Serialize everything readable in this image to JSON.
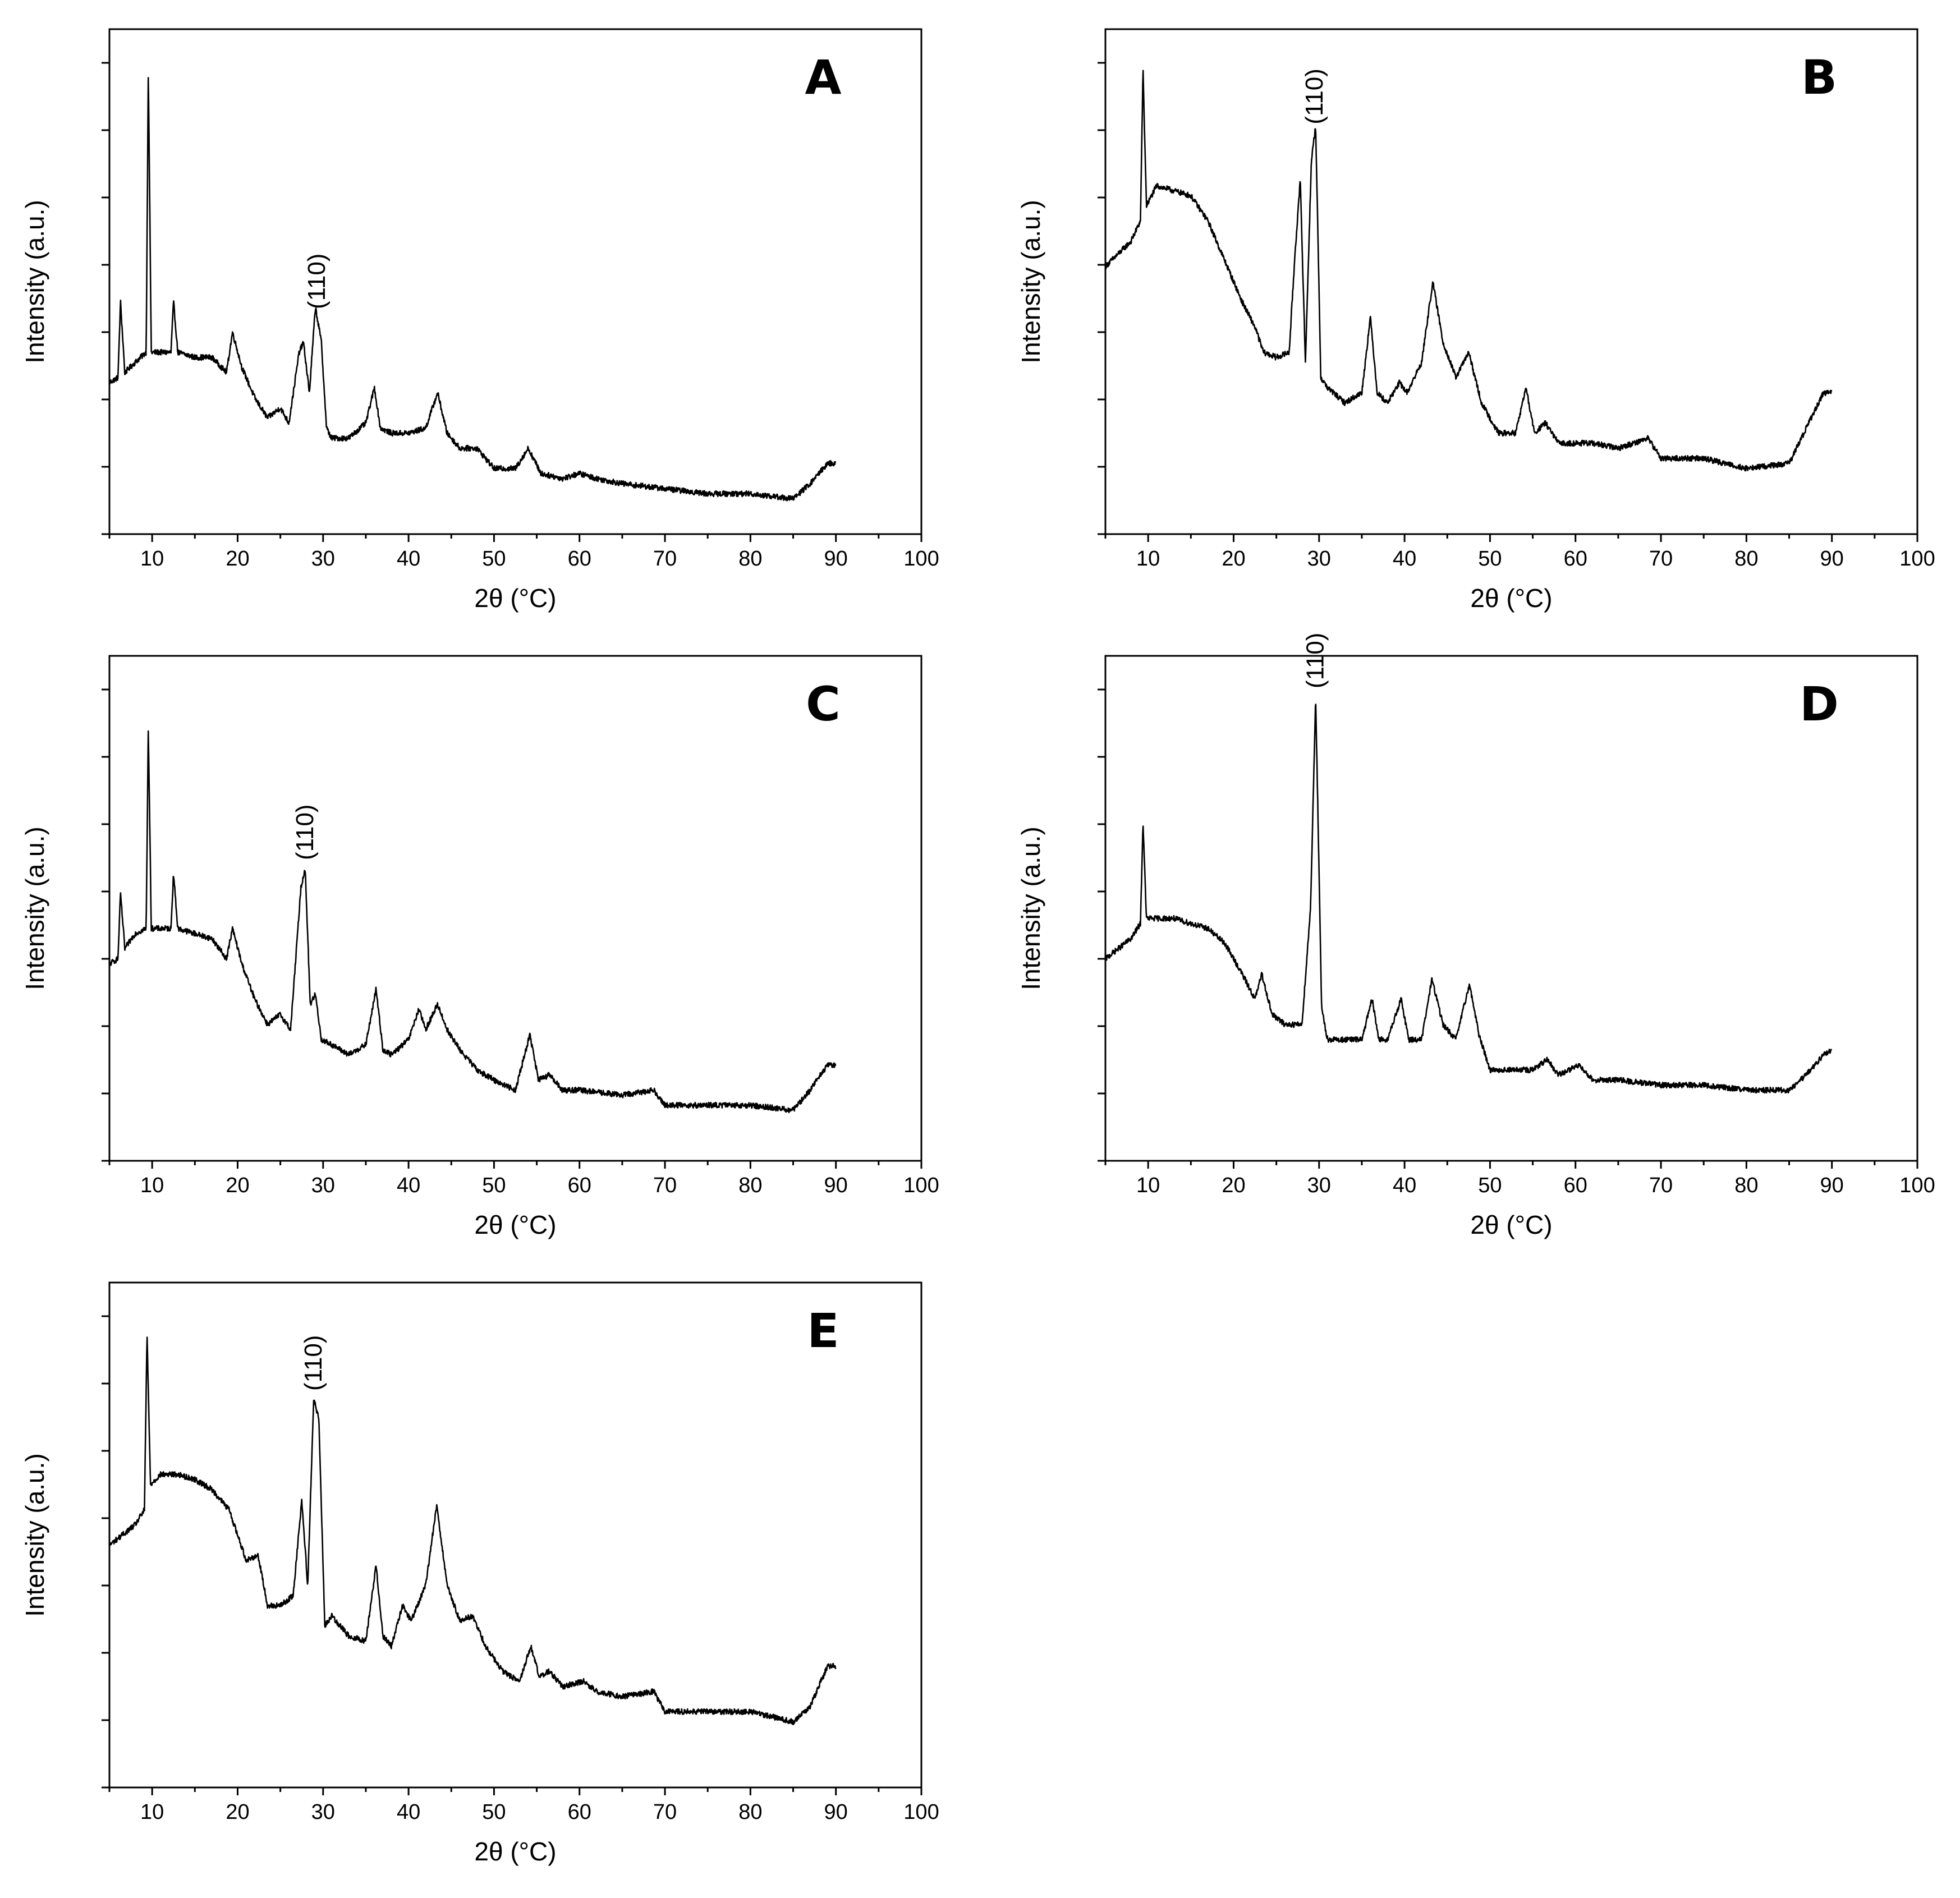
{
  "figure": {
    "description_free": true
  },
  "chart_data": [
    {
      "type": "line",
      "panel": "A",
      "xlabel": "2θ (°C)",
      "ylabel": "Intensity (a.u.)",
      "xlim": [
        5,
        100
      ],
      "xticks": [
        10,
        20,
        30,
        40,
        50,
        60,
        70,
        80,
        90,
        100
      ],
      "ylim": [
        0,
        100
      ],
      "yticks_labeled": false,
      "annotation": {
        "text": "(110)",
        "x": 29.3
      },
      "series": [
        {
          "name": "A",
          "x": [
            5,
            6,
            6.3,
            6.8,
            8,
            9.3,
            9.55,
            9.9,
            11,
            12.2,
            12.5,
            13,
            15,
            17,
            18.7,
            19.4,
            20.5,
            22,
            23.5,
            25,
            26,
            27.2,
            27.7,
            28.4,
            29.1,
            29.8,
            30.4,
            31,
            33,
            35,
            36,
            36.7,
            38,
            40,
            42,
            43.4,
            44.5,
            46,
            48,
            50,
            52.5,
            54,
            55.5,
            58,
            60,
            62,
            65,
            70,
            75,
            80,
            85,
            87,
            89,
            90
          ],
          "y": [
            30,
            31,
            46,
            32,
            34,
            36,
            92,
            36,
            36,
            36,
            46,
            36,
            35,
            35,
            32,
            40,
            33,
            27,
            23,
            25,
            22,
            36,
            38,
            28,
            45,
            38,
            21,
            19,
            19,
            22,
            29,
            21,
            20,
            20,
            21,
            28,
            20,
            17,
            17,
            13,
            13,
            17,
            12,
            11,
            12,
            11,
            10,
            9,
            8,
            8,
            7,
            10,
            14,
            14
          ]
        }
      ]
    },
    {
      "type": "line",
      "panel": "B",
      "xlabel": "2θ (°C)",
      "ylabel": "Intensity (a.u.)",
      "xlim": [
        5,
        100
      ],
      "xticks": [
        10,
        20,
        30,
        40,
        50,
        60,
        70,
        80,
        90,
        100
      ],
      "ylim": [
        0,
        100
      ],
      "yticks_labeled": false,
      "annotation": {
        "text": "(110)",
        "x": 29.5
      },
      "series": [
        {
          "name": "B",
          "x": [
            5,
            8,
            9.1,
            9.4,
            9.8,
            11,
            13,
            15,
            17,
            19,
            21,
            22.5,
            23.5,
            25,
            26.5,
            27.2,
            27.8,
            28.4,
            29.1,
            29.6,
            30.2,
            31,
            33,
            35,
            36,
            36.8,
            38,
            39.4,
            40.3,
            42,
            43.3,
            44.5,
            46,
            47.5,
            49,
            51,
            53,
            54.2,
            55.2,
            56.5,
            58,
            60,
            62,
            65,
            68.5,
            70,
            75,
            80,
            85,
            87,
            89,
            90
          ],
          "y": [
            53,
            58,
            62,
            92,
            65,
            69,
            68,
            67,
            62,
            54,
            46,
            41,
            36,
            35,
            36,
            56,
            70,
            34,
            74,
            81,
            31,
            29,
            26,
            28,
            43,
            28,
            26,
            30,
            28,
            34,
            50,
            38,
            31,
            36,
            26,
            20,
            20,
            29,
            20,
            22,
            18,
            18,
            18,
            17,
            19,
            15,
            15,
            13,
            14,
            21,
            28,
            28
          ]
        }
      ]
    },
    {
      "type": "line",
      "panel": "C",
      "xlabel": "2θ (°C)",
      "ylabel": "Intensity (a.u.)",
      "xlim": [
        5,
        100
      ],
      "xticks": [
        10,
        20,
        30,
        40,
        50,
        60,
        70,
        80,
        90,
        100
      ],
      "ylim": [
        0,
        100
      ],
      "yticks_labeled": false,
      "annotation": {
        "text": "(110)",
        "x": 27.9
      },
      "series": [
        {
          "name": "C",
          "x": [
            5,
            6,
            6.3,
            6.8,
            8,
            9.3,
            9.55,
            9.9,
            11,
            12.2,
            12.5,
            13,
            15,
            17,
            18.7,
            19.4,
            20.5,
            22,
            23.5,
            25,
            26.2,
            27.4,
            27.9,
            28.5,
            29.1,
            29.8,
            31,
            33,
            35,
            36.2,
            37,
            38,
            40,
            41.2,
            42,
            43.4,
            44.5,
            46,
            48,
            50,
            52.5,
            54.2,
            55.2,
            56.5,
            58,
            60,
            65,
            68.7,
            70,
            75,
            80,
            85,
            87,
            89,
            90
          ],
          "y": [
            39,
            40,
            53,
            42,
            45,
            46,
            86,
            46,
            46,
            46,
            57,
            46,
            45,
            44,
            40,
            46,
            39,
            32,
            27,
            29,
            26,
            54,
            58,
            31,
            33,
            24,
            23,
            21,
            23,
            34,
            22,
            21,
            24,
            30,
            26,
            31,
            26,
            22,
            18,
            16,
            14,
            25,
            16,
            17,
            14,
            14,
            13,
            14,
            11,
            11,
            11,
            10,
            14,
            19,
            19
          ]
        }
      ]
    },
    {
      "type": "line",
      "panel": "D",
      "xlabel": "2θ (°C)",
      "ylabel": "Intensity (a.u.)",
      "xlim": [
        5,
        100
      ],
      "xticks": [
        10,
        20,
        30,
        40,
        50,
        60,
        70,
        80,
        90,
        100
      ],
      "ylim": [
        0,
        100
      ],
      "yticks_labeled": false,
      "annotation": {
        "text": "(110)",
        "x": 29.6
      },
      "series": [
        {
          "name": "D",
          "x": [
            5,
            8,
            9.1,
            9.4,
            9.8,
            11,
            13,
            15,
            17,
            19,
            21,
            22.5,
            23.3,
            24.5,
            26,
            28,
            29,
            29.6,
            30.3,
            31,
            33,
            35,
            36.2,
            37,
            38,
            39.6,
            40.5,
            42,
            43.2,
            44.5,
            46,
            47.6,
            48.7,
            50,
            53,
            55,
            56.7,
            58,
            60.5,
            62,
            65,
            70,
            75,
            80,
            85,
            87,
            89,
            90
          ],
          "y": [
            40,
            44,
            47,
            67,
            48,
            48,
            48,
            47,
            46,
            43,
            37,
            32,
            37,
            29,
            27,
            27,
            50,
            92,
            30,
            24,
            24,
            24,
            32,
            24,
            24,
            32,
            24,
            24,
            36,
            27,
            24,
            35,
            25,
            18,
            18,
            18,
            20,
            17,
            19,
            16,
            16,
            15,
            15,
            14,
            14,
            17,
            21,
            22
          ]
        }
      ]
    },
    {
      "type": "line",
      "panel": "E",
      "xlabel": "2θ (°C)",
      "ylabel": "Intensity (a.u.)",
      "xlim": [
        5,
        100
      ],
      "xticks": [
        10,
        20,
        30,
        40,
        50,
        60,
        70,
        80,
        90,
        100
      ],
      "ylim": [
        0,
        100
      ],
      "yticks_labeled": false,
      "annotation": {
        "text": "(110)",
        "x": 28.9
      },
      "series": [
        {
          "name": "E",
          "x": [
            5,
            8,
            9.1,
            9.4,
            9.8,
            11,
            13,
            15,
            17,
            19,
            21,
            22.4,
            23.5,
            25,
            26.5,
            27.5,
            28.2,
            28.9,
            29.5,
            30.2,
            31,
            33,
            35,
            36.2,
            37,
            38,
            39.3,
            40.3,
            42,
            43.3,
            44.5,
            46,
            47.5,
            49,
            51,
            53,
            54.3,
            55.3,
            56.5,
            58,
            60.5,
            62,
            65,
            68.7,
            70,
            75,
            80,
            85,
            87,
            89,
            90
          ],
          "y": [
            48,
            52,
            55,
            90,
            60,
            62,
            62,
            61,
            59,
            55,
            45,
            46,
            36,
            36,
            38,
            57,
            40,
            77,
            73,
            32,
            34,
            30,
            29,
            44,
            30,
            28,
            36,
            33,
            40,
            56,
            40,
            33,
            34,
            28,
            23,
            21,
            28,
            22,
            23,
            20,
            21,
            19,
            18,
            19,
            15,
            15,
            15,
            13,
            16,
            24,
            24
          ]
        }
      ]
    }
  ]
}
